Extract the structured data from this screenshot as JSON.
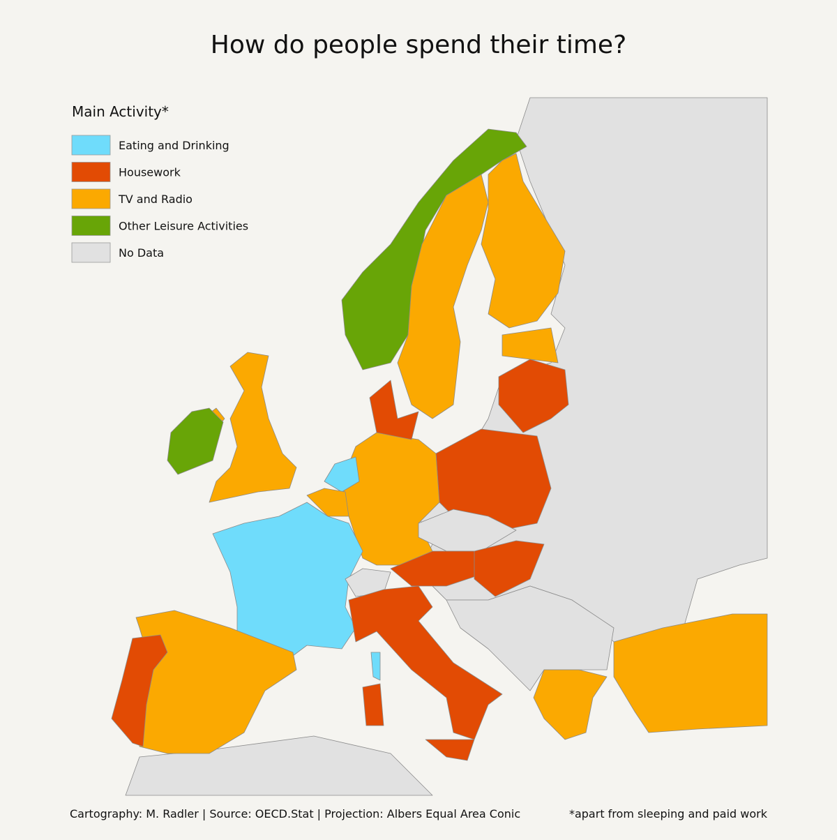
{
  "title": "How do people spend their time?",
  "legend": {
    "title": "Main Activity*",
    "items": [
      {
        "label": "Eating and Drinking",
        "color": "#6fdcfb"
      },
      {
        "label": "Housework",
        "color": "#e24b04"
      },
      {
        "label": "TV and Radio",
        "color": "#fba901"
      },
      {
        "label": "Other Leisure Activities",
        "color": "#68a507"
      },
      {
        "label": "No Data",
        "color": "#e1e1e1"
      }
    ]
  },
  "footer": {
    "credit": "Cartography: M. Radler | Source: OECD.Stat | Projection: Albers Equal Area Conic",
    "note": "*apart from sleeping and paid work"
  }
}
